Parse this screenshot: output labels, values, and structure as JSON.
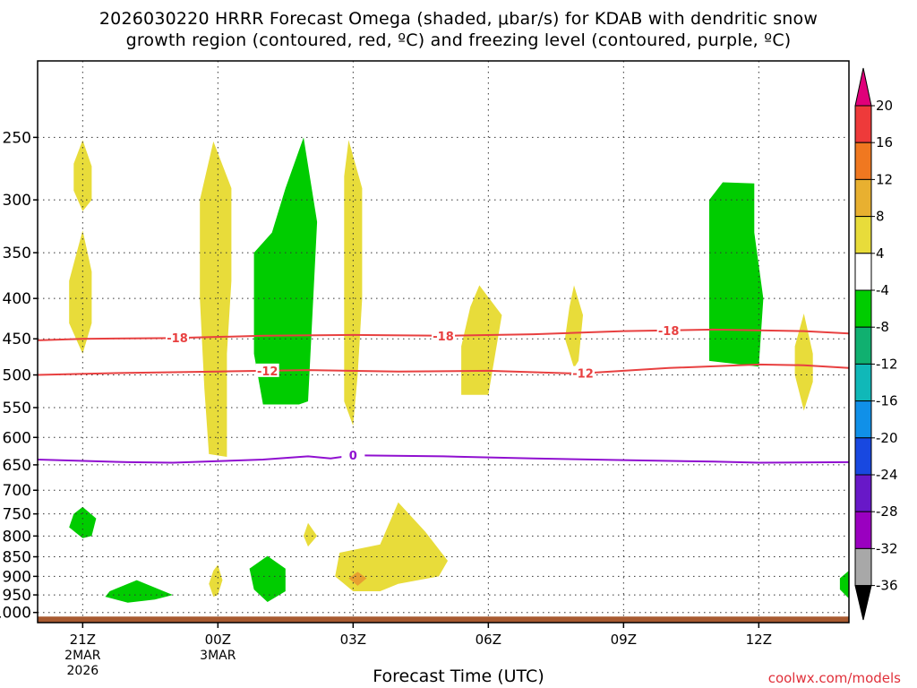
{
  "chart_data": {
    "type": "time-height cross-section",
    "title_line1": "2026030220 HRRR Forecast Omega (shaded, μbar/s) for KDAB with dendritic snow",
    "title_line2": "growth region (contoured, red, ºC) and freezing level (contoured, purple, ºC)",
    "xlabel": "Forecast Time (UTC)",
    "credit": "coolwx.com/models",
    "x_range_hours": [
      -1,
      17
    ],
    "y_range_mb": [
      1030,
      200
    ],
    "y_scale": "log",
    "y_ticks": [
      250,
      300,
      350,
      400,
      450,
      500,
      550,
      600,
      650,
      700,
      750,
      800,
      850,
      900,
      950,
      1000
    ],
    "x_ticks": [
      {
        "hour": 0,
        "label": "21Z",
        "sub": [
          "2MAR",
          "2026"
        ]
      },
      {
        "hour": 3,
        "label": "00Z",
        "sub": [
          "3MAR"
        ]
      },
      {
        "hour": 6,
        "label": "03Z",
        "sub": []
      },
      {
        "hour": 9,
        "label": "06Z",
        "sub": []
      },
      {
        "hour": 12,
        "label": "09Z",
        "sub": []
      },
      {
        "hour": 15,
        "label": "12Z",
        "sub": []
      }
    ],
    "grid": "dotted",
    "colorbar": {
      "labels": [
        "20",
        "16",
        "12",
        "8",
        "4",
        "-4",
        "-8",
        "-12",
        "-16",
        "-20",
        "-24",
        "-28",
        "-32",
        "-36"
      ],
      "colors": [
        "#e0007a",
        "#ee3a3a",
        "#f07820",
        "#e8b030",
        "#e8dc3a",
        "#ffffff",
        "#00cc00",
        "#10b070",
        "#10b8b8",
        "#1090e8",
        "#1848e0",
        "#6818c8",
        "#9a00c0",
        "#a8a8a8",
        "#000000"
      ]
    },
    "contours": [
      {
        "name": "-18",
        "color": "#e84040",
        "label_hours": [
          2.1,
          8.0,
          13.0
        ],
        "points": [
          [
            -1,
            452
          ],
          [
            0,
            450
          ],
          [
            2,
            449
          ],
          [
            4,
            446
          ],
          [
            6,
            445
          ],
          [
            8,
            446
          ],
          [
            10,
            444
          ],
          [
            12,
            440
          ],
          [
            14,
            438
          ],
          [
            16,
            440
          ],
          [
            17,
            443
          ]
        ]
      },
      {
        "name": "-12",
        "color": "#e84040",
        "label_hours": [
          4.1,
          11.1
        ],
        "points": [
          [
            -1,
            500
          ],
          [
            1,
            497
          ],
          [
            3,
            495
          ],
          [
            5,
            493
          ],
          [
            7,
            495
          ],
          [
            9,
            494
          ],
          [
            11,
            498
          ],
          [
            13,
            490
          ],
          [
            15,
            485
          ],
          [
            16,
            486
          ],
          [
            17,
            490
          ]
        ]
      },
      {
        "name": "0",
        "color": "#9010d0",
        "label_hours": [
          6.0
        ],
        "points": [
          [
            -1,
            640
          ],
          [
            1,
            645
          ],
          [
            2,
            646
          ],
          [
            3,
            643
          ],
          [
            4,
            640
          ],
          [
            5,
            634
          ],
          [
            5.5,
            638
          ],
          [
            6,
            632
          ],
          [
            8,
            634
          ],
          [
            10,
            638
          ],
          [
            12,
            641
          ],
          [
            14,
            644
          ],
          [
            15,
            646
          ],
          [
            17,
            645
          ]
        ]
      }
    ],
    "shaded": [
      {
        "color": "#e8dc3a",
        "points": [
          [
            0,
            252
          ],
          [
            0.2,
            272
          ],
          [
            0.2,
            300
          ],
          [
            0,
            310
          ],
          [
            -0.2,
            292
          ],
          [
            -0.2,
            270
          ]
        ]
      },
      {
        "color": "#e8dc3a",
        "points": [
          [
            0,
            328
          ],
          [
            0.2,
            370
          ],
          [
            0.2,
            430
          ],
          [
            0,
            470
          ],
          [
            -0.3,
            430
          ],
          [
            -0.3,
            380
          ]
        ]
      },
      {
        "color": "#e8dc3a",
        "points": [
          [
            2.9,
            253
          ],
          [
            3.3,
            290
          ],
          [
            3.3,
            380
          ],
          [
            3.2,
            470
          ],
          [
            3.2,
            600
          ],
          [
            3.2,
            635
          ],
          [
            2.8,
            630
          ],
          [
            2.7,
            520
          ],
          [
            2.6,
            400
          ],
          [
            2.6,
            300
          ]
        ]
      },
      {
        "color": "#00cc00",
        "points": [
          [
            4.9,
            250
          ],
          [
            5.2,
            320
          ],
          [
            5.0,
            540
          ],
          [
            4.8,
            545
          ],
          [
            4.0,
            545
          ],
          [
            3.8,
            470
          ],
          [
            3.8,
            350
          ],
          [
            4.2,
            330
          ],
          [
            4.5,
            290
          ]
        ]
      },
      {
        "color": "#e8dc3a",
        "points": [
          [
            5.9,
            252
          ],
          [
            6.2,
            290
          ],
          [
            6.2,
            400
          ],
          [
            6.1,
            500
          ],
          [
            6.0,
            580
          ],
          [
            5.8,
            540
          ],
          [
            5.8,
            400
          ],
          [
            5.8,
            280
          ]
        ]
      },
      {
        "color": "#e8dc3a",
        "points": [
          [
            8.8,
            385
          ],
          [
            9.3,
            420
          ],
          [
            9.0,
            530
          ],
          [
            8.4,
            530
          ],
          [
            8.4,
            460
          ],
          [
            8.6,
            410
          ]
        ]
      },
      {
        "color": "#e8dc3a",
        "points": [
          [
            10.9,
            385
          ],
          [
            11.1,
            420
          ],
          [
            11.0,
            480
          ],
          [
            10.9,
            490
          ],
          [
            10.7,
            450
          ],
          [
            10.8,
            410
          ]
        ]
      },
      {
        "color": "#00cc00",
        "points": [
          [
            14.9,
            286
          ],
          [
            14.9,
            330
          ],
          [
            15.1,
            400
          ],
          [
            15.0,
            488
          ],
          [
            13.9,
            480
          ],
          [
            13.9,
            380
          ],
          [
            13.9,
            300
          ],
          [
            14.2,
            285
          ]
        ]
      },
      {
        "color": "#e8dc3a",
        "points": [
          [
            16.0,
            418
          ],
          [
            16.2,
            470
          ],
          [
            16.2,
            510
          ],
          [
            16.0,
            555
          ],
          [
            15.8,
            500
          ],
          [
            15.8,
            460
          ]
        ]
      },
      {
        "color": "#00cc00",
        "points": [
          [
            0,
            735
          ],
          [
            0.3,
            760
          ],
          [
            0.2,
            800
          ],
          [
            0,
            805
          ],
          [
            -0.3,
            780
          ],
          [
            -0.2,
            750
          ]
        ]
      },
      {
        "color": "#00cc00",
        "points": [
          [
            1.2,
            910
          ],
          [
            2.0,
            950
          ],
          [
            1.6,
            963
          ],
          [
            1.0,
            972
          ],
          [
            0.5,
            955
          ],
          [
            0.6,
            940
          ]
        ]
      },
      {
        "color": "#e8dc3a",
        "points": [
          [
            3.0,
            870
          ],
          [
            3.1,
            910
          ],
          [
            3.0,
            950
          ],
          [
            2.9,
            955
          ],
          [
            2.8,
            920
          ],
          [
            2.9,
            885
          ]
        ]
      },
      {
        "color": "#00cc00",
        "points": [
          [
            4.1,
            848
          ],
          [
            4.5,
            880
          ],
          [
            4.5,
            940
          ],
          [
            4.1,
            970
          ],
          [
            3.8,
            935
          ],
          [
            3.7,
            880
          ]
        ]
      },
      {
        "color": "#e8dc3a",
        "points": [
          [
            5.0,
            770
          ],
          [
            5.2,
            800
          ],
          [
            5.0,
            825
          ],
          [
            4.9,
            800
          ]
        ]
      },
      {
        "color": "#e8dc3a",
        "points": [
          [
            7.0,
            725
          ],
          [
            7.6,
            790
          ],
          [
            8.1,
            860
          ],
          [
            7.9,
            900
          ],
          [
            7.0,
            920
          ],
          [
            6.6,
            940
          ],
          [
            6.0,
            940
          ],
          [
            5.6,
            900
          ],
          [
            5.7,
            840
          ],
          [
            6.6,
            820
          ]
        ]
      },
      {
        "color": "#e8a030",
        "points": [
          [
            6.1,
            888
          ],
          [
            6.3,
            905
          ],
          [
            6.1,
            925
          ],
          [
            5.9,
            905
          ]
        ]
      },
      {
        "color": "#00cc00",
        "points": [
          [
            17,
            885
          ],
          [
            17,
            960
          ],
          [
            16.8,
            935
          ],
          [
            16.8,
            905
          ]
        ]
      }
    ]
  }
}
